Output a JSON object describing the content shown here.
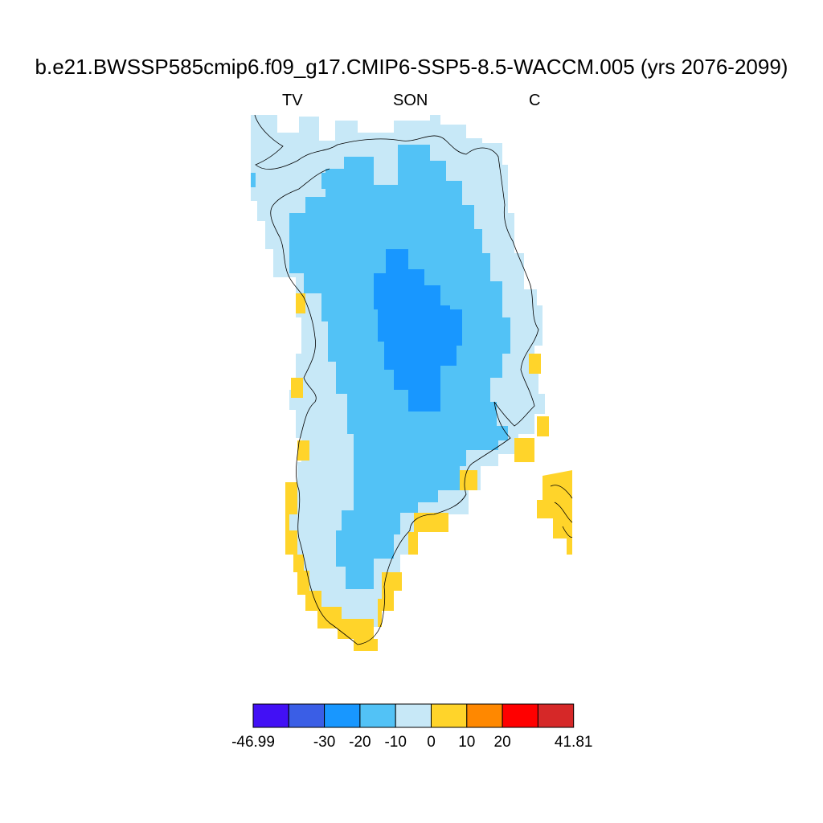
{
  "title": "b.e21.BWSSP585cmip6.f09_g17.CMIP6-SSP5-8.5-WACCM.005 (yrs 2076-2099)",
  "subtitle_left": "TV",
  "subtitle_center": "SON",
  "subtitle_right": "C",
  "colorbar": {
    "colors": [
      "#4210f5",
      "#3a5ee6",
      "#1897ff",
      "#52c2f6",
      "#c7e8f7",
      "#ffd42a",
      "#ff8800",
      "#ff0000",
      "#d62828"
    ],
    "labels": [
      "-46.99",
      "-30",
      "-20",
      "-10",
      "0",
      "10",
      "20",
      "41.81"
    ],
    "min": -46.99,
    "max": 41.81
  },
  "map": {
    "region": "Greenland",
    "field": "TV",
    "season": "SON",
    "units": "C",
    "coastline_color": "#000000"
  }
}
